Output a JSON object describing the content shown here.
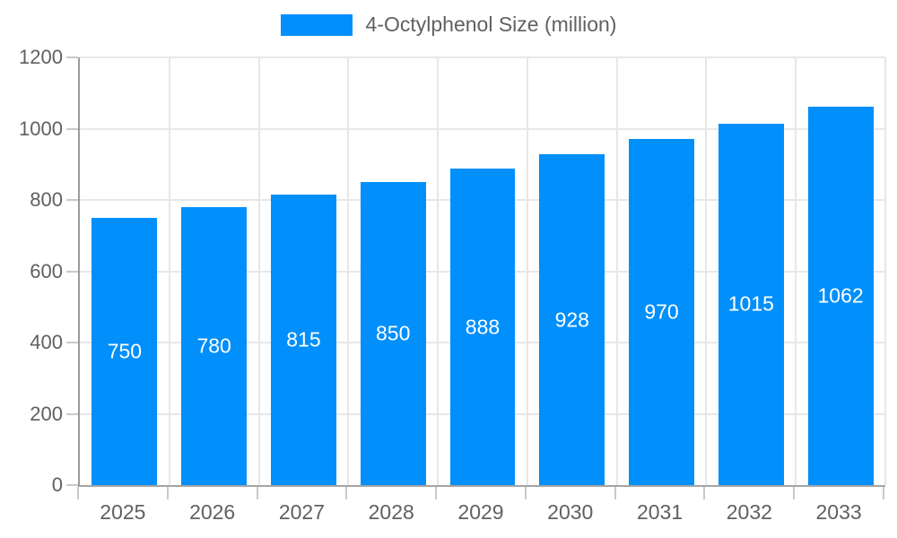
{
  "legend": {
    "label": "4-Octylphenol Size (million)"
  },
  "colors": {
    "bar": "#008FFB",
    "bar_label": "#ffffff",
    "axis_label": "#606060",
    "grid": "#e7e7e7",
    "axis_line": "#9b9b9b",
    "tick": "#c9c9c9"
  },
  "chart_data": {
    "type": "bar",
    "categories": [
      "2025",
      "2026",
      "2027",
      "2028",
      "2029",
      "2030",
      "2031",
      "2032",
      "2033"
    ],
    "values": [
      750,
      780,
      815,
      850,
      888,
      928,
      970,
      1015,
      1062
    ],
    "series_name": "4-Octylphenol Size (million)",
    "title": "",
    "xlabel": "",
    "ylabel": "",
    "ylim": [
      0,
      1200
    ],
    "yticks": [
      0,
      200,
      400,
      600,
      800,
      1000,
      1200
    ],
    "grid": true,
    "legend_position": "top",
    "bar_labels": "centered-white"
  }
}
